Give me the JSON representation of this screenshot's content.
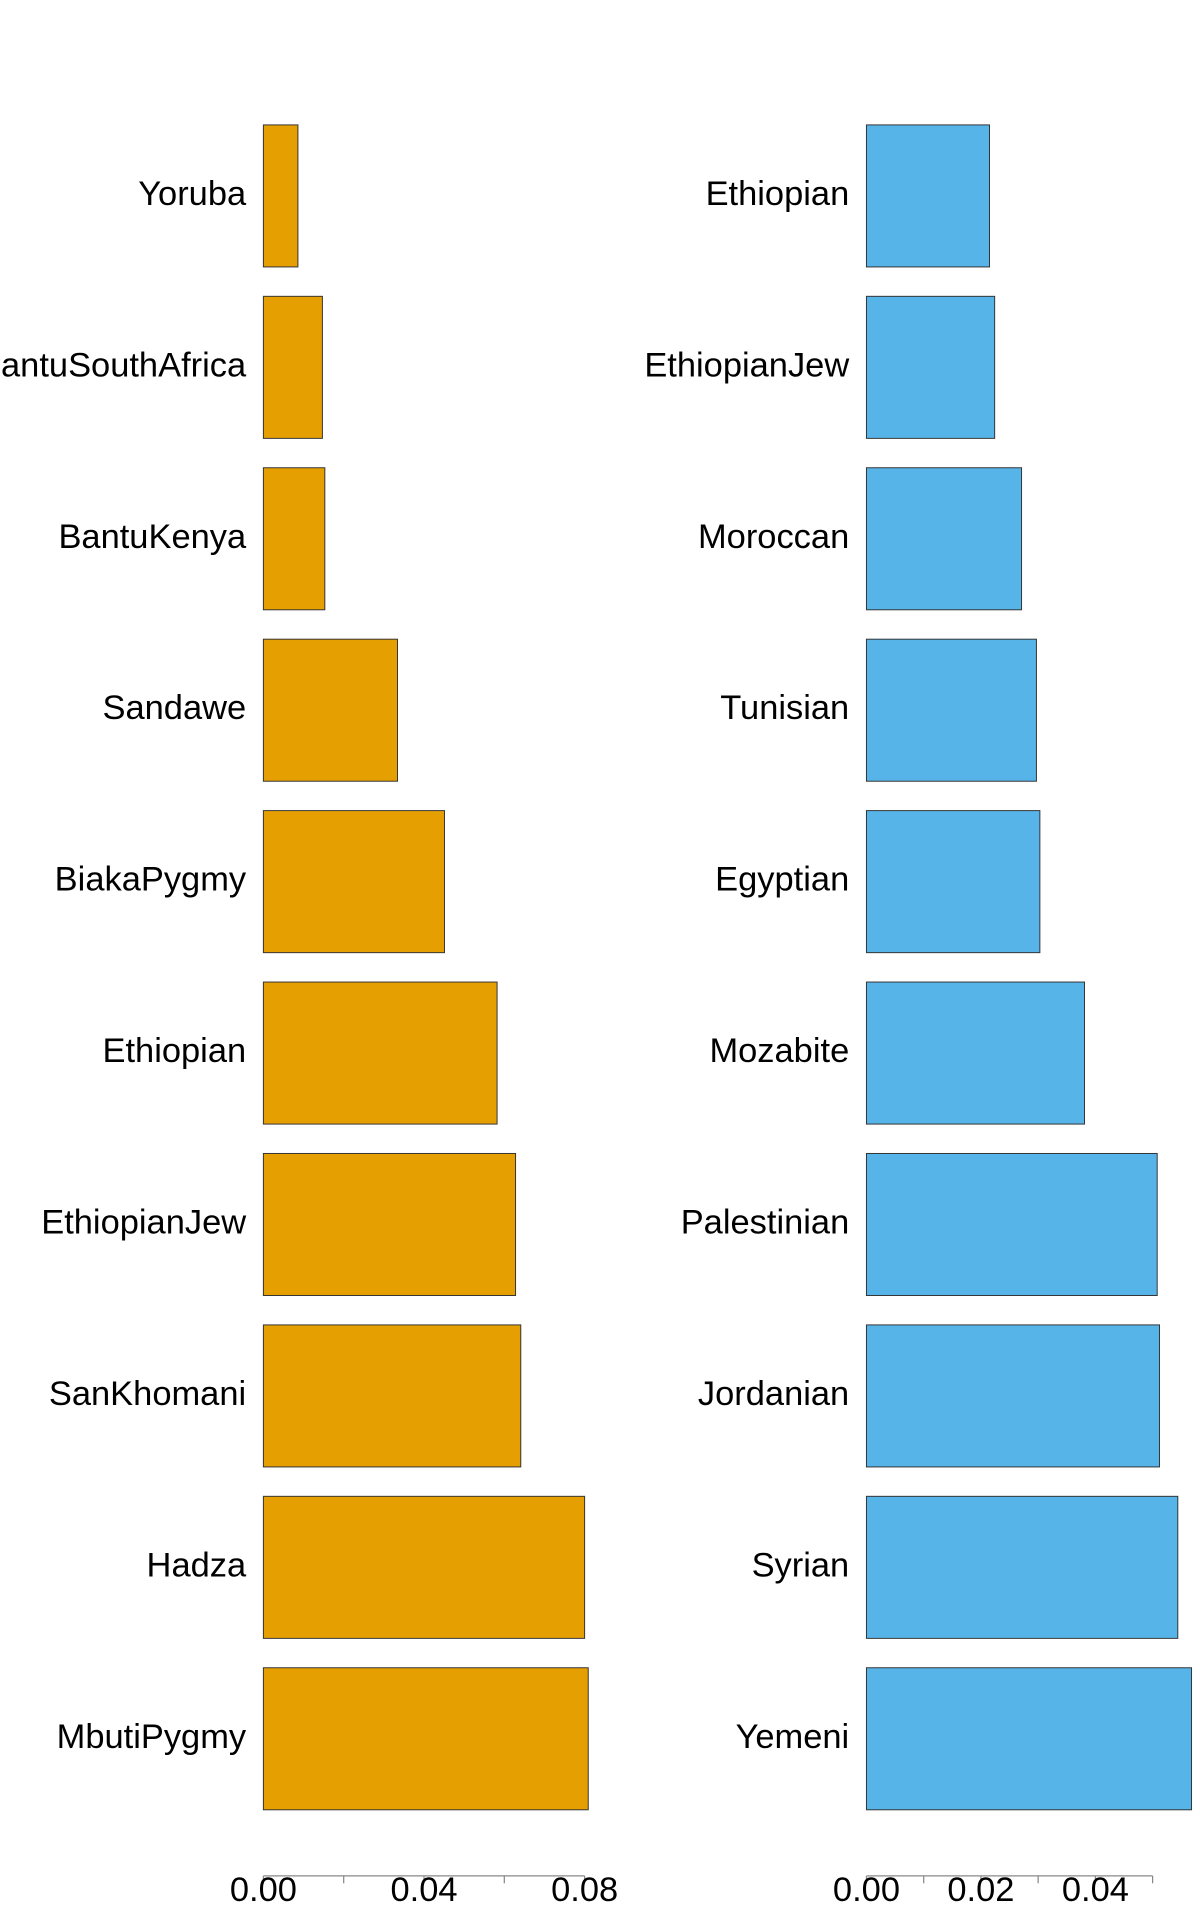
{
  "chart_data": [
    {
      "type": "barh",
      "color": "#e69f00",
      "categories": [
        "Yoruba",
        "BantuSouthAfrica",
        "BantuKenya",
        "Sandawe",
        "BiakaPygmy",
        "Ethiopian",
        "EthiopianJew",
        "SanKhomani",
        "Hadza",
        "MbutiPygmy"
      ],
      "values": [
        0.0086,
        0.0147,
        0.0153,
        0.0334,
        0.0451,
        0.0582,
        0.0628,
        0.0641,
        0.08,
        0.0809
      ],
      "xlim": [
        0,
        0.08
      ],
      "xticks": [
        {
          "value": 0,
          "label": "0.00"
        },
        {
          "value": 0.04,
          "label": "0.04"
        },
        {
          "value": 0.08,
          "label": "0.08"
        }
      ],
      "minor_xticks": [
        0.02,
        0.06
      ]
    },
    {
      "type": "barh",
      "color": "#56b4e9",
      "categories": [
        "Ethiopian",
        "EthiopianJew",
        "Moroccan",
        "Tunisian",
        "Egyptian",
        "Mozabite",
        "Palestinian",
        "Jordanian",
        "Syrian",
        "Yemeni"
      ],
      "values": [
        0.0215,
        0.0224,
        0.0271,
        0.0297,
        0.0303,
        0.0381,
        0.0508,
        0.0512,
        0.0544,
        0.0568
      ],
      "xlim": [
        0,
        0.05
      ],
      "xticks": [
        {
          "value": 0,
          "label": "0.00"
        },
        {
          "value": 0.02,
          "label": "0.02"
        },
        {
          "value": 0.04,
          "label": "0.04"
        }
      ],
      "minor_xticks": [
        0.01,
        0.03,
        0.05
      ]
    }
  ]
}
